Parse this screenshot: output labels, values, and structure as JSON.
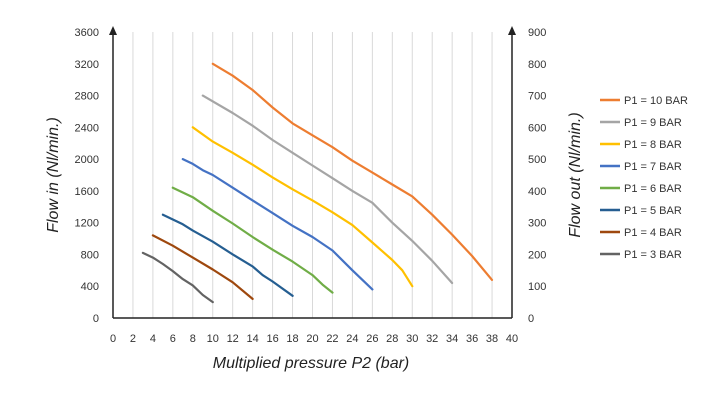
{
  "chart_data": {
    "type": "line",
    "xlabel": "Multiplied pressure P2 (bar)",
    "ylabel": "Flow in (Nl/min.)",
    "y2label": "Flow out (Nl/min.)",
    "xlim": [
      0,
      40
    ],
    "ylim": [
      0,
      3600
    ],
    "y2lim": [
      0,
      900
    ],
    "xticks": [
      "0",
      "2",
      "4",
      "6",
      "8",
      "10",
      "12",
      "14",
      "16",
      "18",
      "20",
      "22",
      "24",
      "26",
      "28",
      "30",
      "32",
      "34",
      "36",
      "38",
      "40"
    ],
    "yticks": [
      "0",
      "400",
      "800",
      "1200",
      "1600",
      "2000",
      "2400",
      "2800",
      "3200",
      "3600"
    ],
    "y2ticks": [
      "0",
      "100",
      "200",
      "300",
      "400",
      "500",
      "600",
      "700",
      "800",
      "900"
    ],
    "grid": "vertical",
    "legend_position": "right",
    "series": [
      {
        "name": "P1 = 10 BAR",
        "color": "#ED7D31",
        "x": [
          10,
          12,
          14,
          16,
          18,
          20,
          22,
          24,
          26,
          28,
          30,
          32,
          34,
          36,
          38
        ],
        "y": [
          3200,
          3050,
          2870,
          2650,
          2450,
          2300,
          2150,
          1980,
          1830,
          1680,
          1530,
          1300,
          1050,
          780,
          480
        ]
      },
      {
        "name": "P1 = 9 BAR",
        "color": "#A5A5A5",
        "x": [
          9,
          12,
          14,
          16,
          18,
          20,
          22,
          24,
          26,
          28,
          30,
          32,
          34
        ],
        "y": [
          2800,
          2580,
          2420,
          2240,
          2080,
          1920,
          1760,
          1600,
          1450,
          1200,
          970,
          720,
          440
        ]
      },
      {
        "name": "P1 = 8 BAR",
        "color": "#FFC000",
        "x": [
          8,
          10,
          12,
          14,
          16,
          18,
          20,
          22,
          24,
          26,
          28,
          29,
          30
        ],
        "y": [
          2400,
          2220,
          2080,
          1930,
          1770,
          1620,
          1480,
          1330,
          1170,
          950,
          730,
          600,
          400
        ]
      },
      {
        "name": "P1 = 7 BAR",
        "color": "#4472C4",
        "x": [
          7,
          8,
          9,
          10,
          12,
          14,
          16,
          18,
          20,
          22,
          24,
          26
        ],
        "y": [
          2000,
          1940,
          1860,
          1800,
          1640,
          1480,
          1320,
          1160,
          1020,
          850,
          600,
          360
        ]
      },
      {
        "name": "P1 = 6 BAR",
        "color": "#70AD47",
        "x": [
          6,
          8,
          10,
          12,
          14,
          16,
          18,
          20,
          21,
          22
        ],
        "y": [
          1640,
          1520,
          1350,
          1190,
          1020,
          860,
          710,
          540,
          420,
          320
        ]
      },
      {
        "name": "P1 = 5 BAR",
        "color": "#255E91",
        "x": [
          5,
          7,
          8,
          10,
          12,
          14,
          15,
          16,
          18
        ],
        "y": [
          1300,
          1180,
          1100,
          960,
          800,
          650,
          540,
          460,
          280
        ]
      },
      {
        "name": "P1 = 4 BAR",
        "color": "#9E480E",
        "x": [
          4,
          6,
          8,
          10,
          12,
          14
        ],
        "y": [
          1040,
          910,
          760,
          610,
          450,
          240
        ]
      },
      {
        "name": "P1 = 3 BAR",
        "color": "#636363",
        "x": [
          3,
          4,
          5,
          6,
          7,
          8,
          9,
          10
        ],
        "y": [
          820,
          760,
          680,
          590,
          490,
          410,
          290,
          200
        ]
      }
    ]
  }
}
